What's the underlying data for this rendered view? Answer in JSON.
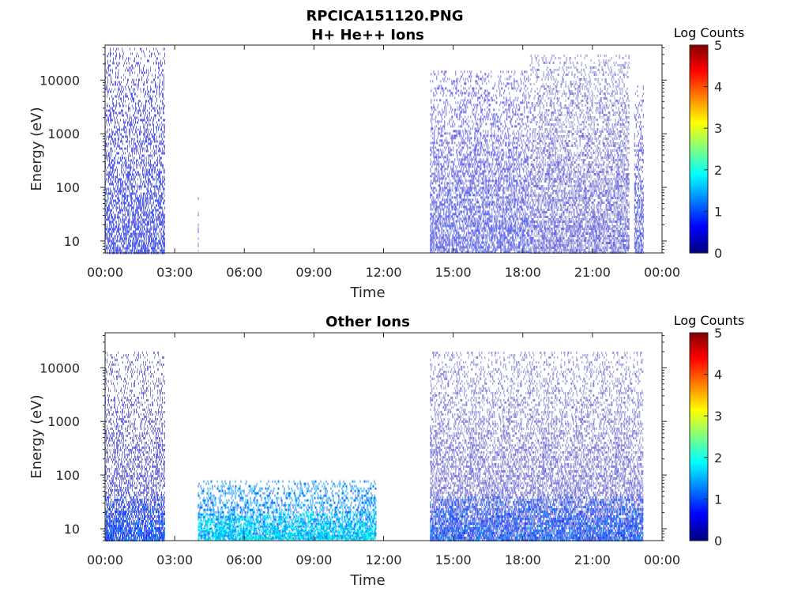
{
  "figure": {
    "title": "RPCICA151120.PNG"
  },
  "colorbar": {
    "label": "Log Counts",
    "ticks": [
      "0",
      "1",
      "2",
      "3",
      "4",
      "5"
    ],
    "colormap": "jet",
    "colors": [
      "#00007f",
      "#0000ff",
      "#007fff",
      "#00ffff",
      "#7fff7f",
      "#ffff00",
      "#ff7f00",
      "#ff0000",
      "#7f0000"
    ]
  },
  "chart_data": [
    {
      "type": "heatmap",
      "title": "H+ He++ Ions",
      "xlabel": "Time",
      "ylabel": "Energy (eV)",
      "x_ticks": [
        "00:00",
        "03:00",
        "06:00",
        "09:00",
        "12:00",
        "15:00",
        "18:00",
        "21:00",
        "00:00"
      ],
      "y_ticks": [
        "10",
        "100",
        "1000",
        "10000"
      ],
      "y_scale": "log",
      "xlim_hours": [
        0,
        24
      ],
      "ylim_eV": [
        6,
        45000
      ],
      "clim": [
        0,
        5
      ],
      "data_blocks": [
        {
          "t_start": 0.0,
          "t_end": 2.6,
          "e_min": 6,
          "e_max": 40000,
          "level": 0.5
        },
        {
          "t_start": 4.0,
          "t_end": 4.05,
          "e_min": 6,
          "e_max": 80,
          "level": 0.4
        },
        {
          "t_start": 14.0,
          "t_end": 18.3,
          "e_min": 6,
          "e_max": 15000,
          "level": 0.4
        },
        {
          "t_start": 18.3,
          "t_end": 22.6,
          "e_min": 6,
          "e_max": 30000,
          "level": 0.2
        },
        {
          "t_start": 22.8,
          "t_end": 23.2,
          "e_min": 6,
          "e_max": 8000,
          "level": 0.4
        }
      ]
    },
    {
      "type": "heatmap",
      "title": "Other Ions",
      "xlabel": "Time",
      "ylabel": "Energy (eV)",
      "x_ticks": [
        "00:00",
        "03:00",
        "06:00",
        "09:00",
        "12:00",
        "15:00",
        "18:00",
        "21:00",
        "00:00"
      ],
      "y_ticks": [
        "10",
        "100",
        "1000",
        "10000"
      ],
      "y_scale": "log",
      "xlim_hours": [
        0,
        24
      ],
      "ylim_eV": [
        6,
        45000
      ],
      "clim": [
        0,
        5
      ],
      "data_blocks": [
        {
          "t_start": 0.0,
          "t_end": 2.6,
          "e_min": 6,
          "e_max": 20000,
          "level": 0.3
        },
        {
          "t_start": 0.0,
          "t_end": 2.6,
          "e_min": 6,
          "e_max": 40,
          "level": 1.0
        },
        {
          "t_start": 4.0,
          "t_end": 11.7,
          "e_min": 6,
          "e_max": 80,
          "level": 1.3
        },
        {
          "t_start": 4.0,
          "t_end": 11.7,
          "e_min": 6,
          "e_max": 20,
          "level": 1.8
        },
        {
          "t_start": 14.0,
          "t_end": 23.2,
          "e_min": 6,
          "e_max": 20000,
          "level": 0.2
        },
        {
          "t_start": 14.0,
          "t_end": 23.2,
          "e_min": 6,
          "e_max": 40,
          "level": 1.0
        }
      ]
    }
  ]
}
